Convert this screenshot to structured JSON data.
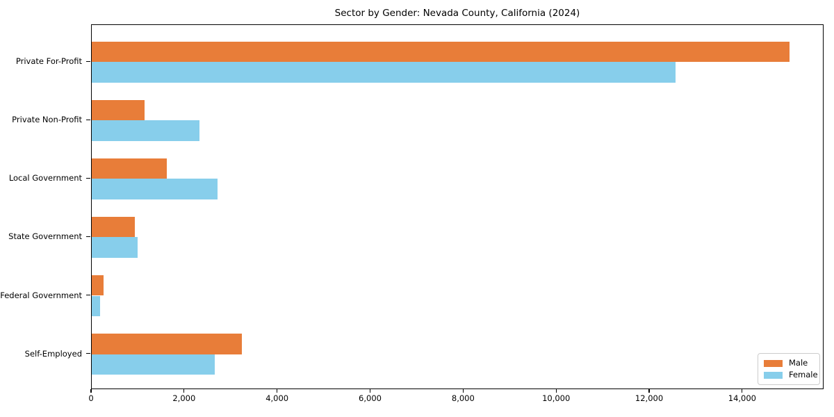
{
  "chart_data": {
    "type": "bar",
    "orientation": "horizontal",
    "title": "Sector by Gender: Nevada County, California (2024)",
    "categories": [
      "Private For-Profit",
      "Private Non-Profit",
      "Local Government",
      "State Government",
      "Federal Government",
      "Self-Employed"
    ],
    "series": [
      {
        "name": "Male",
        "color": "#e87d39",
        "values": [
          15000,
          1140,
          1610,
          930,
          260,
          3225
        ]
      },
      {
        "name": "Female",
        "color": "#87ceeb",
        "values": [
          12550,
          2315,
          2705,
          980,
          175,
          2645
        ]
      }
    ],
    "xlabel": "",
    "ylabel": "",
    "xlim": [
      0,
      15750
    ],
    "xticks": [
      0,
      2000,
      4000,
      6000,
      8000,
      10000,
      12000,
      14000
    ],
    "xtick_labels": [
      "0",
      "2,000",
      "4,000",
      "6,000",
      "8,000",
      "10,000",
      "12,000",
      "14,000"
    ],
    "grid": false,
    "legend_position": "lower right",
    "axis_color": "#000000",
    "background_color": "#ffffff"
  }
}
